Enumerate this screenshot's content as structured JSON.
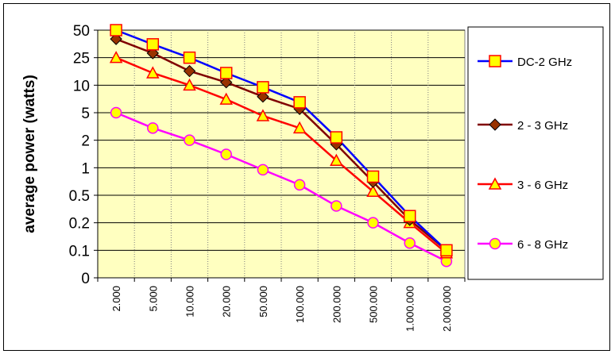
{
  "chart_data": {
    "type": "line",
    "title": "",
    "xlabel": "",
    "ylabel": "average power (watts)",
    "categories": [
      "2.000",
      "5.000",
      "10.000",
      "20.000",
      "50.000",
      "100.000",
      "200.000",
      "500.000",
      "1.000.000",
      "2.000.000"
    ],
    "y_ticks": [
      "0",
      "0.1",
      "0.2",
      "0.5",
      "1",
      "2",
      "5",
      "10",
      "25",
      "50"
    ],
    "y_scale": "log (labelled tick positions)",
    "grid": "horizontal solid, vertical dotted",
    "plot_background": "#ffffc0",
    "legend_position": "right",
    "series": [
      {
        "name": "DC-2 GHz",
        "color": "#0000ff",
        "marker": "square",
        "marker_fill": "#ffff00",
        "marker_edge": "#ff0000",
        "values": [
          50,
          35,
          25,
          15,
          9.5,
          6.5,
          2.2,
          0.8,
          0.25,
          0.1
        ]
      },
      {
        "name": "2 - 3 GHz",
        "color": "#800000",
        "marker": "diamond",
        "marker_fill": "#993300",
        "marker_edge": "#000000",
        "values": [
          40,
          28,
          16,
          11,
          7.5,
          5.5,
          1.8,
          0.7,
          0.22,
          0.1
        ]
      },
      {
        "name": "3 - 6 GHz",
        "color": "#ff0000",
        "marker": "triangle",
        "marker_fill": "#ffff00",
        "marker_edge": "#ff0000",
        "values": [
          25,
          15,
          10,
          7,
          4.5,
          3,
          1.2,
          0.55,
          0.2,
          0.09
        ]
      },
      {
        "name": "6 - 8 GHz",
        "color": "#ff00ff",
        "marker": "circle",
        "marker_fill": "#ffff00",
        "marker_edge": "#ff00ff",
        "values": [
          5,
          3,
          2,
          1.4,
          0.95,
          0.65,
          0.35,
          0.2,
          0.12,
          0.06
        ]
      }
    ]
  }
}
